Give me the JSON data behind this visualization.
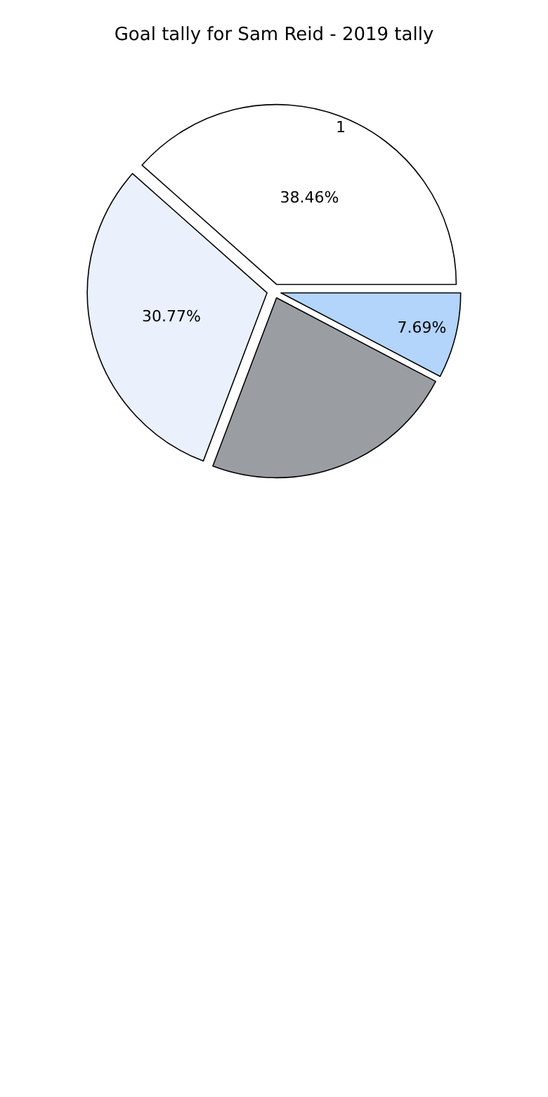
{
  "chart_data": {
    "type": "pie",
    "title": "Goal tally for Sam Reid - 2019 tally",
    "categories": [
      "1",
      null,
      null,
      null
    ],
    "values": [
      38.46,
      30.77,
      23.08,
      7.69
    ],
    "value_labels": [
      "38.46%",
      "30.77%",
      null,
      "7.69%"
    ],
    "colors": [
      "#ffffff",
      "#eaf1fd",
      "#9a9ea3",
      "#b3d4fb"
    ]
  }
}
